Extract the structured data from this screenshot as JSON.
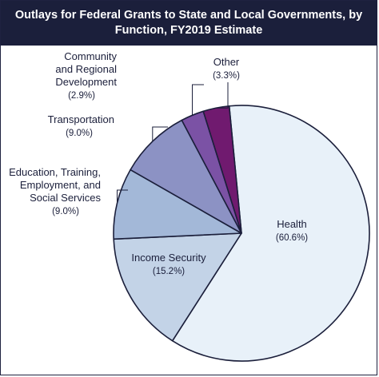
{
  "chart_data": {
    "type": "pie",
    "title_lines": [
      "Outlays for Federal Grants to State and Local Governments, by",
      "Function, FY2019 Estimate"
    ],
    "slices": [
      {
        "name_lines": [
          "Health"
        ],
        "value_label": "(60.6%)",
        "value": 60.6,
        "color": "#e8f1f9"
      },
      {
        "name_lines": [
          "Income Security"
        ],
        "value_label": "(15.2%)",
        "value": 15.2,
        "color": "#c3d3e7"
      },
      {
        "name_lines": [
          "Education, Training,",
          "Employment, and",
          "Social Services"
        ],
        "value_label": "(9.0%)",
        "value": 9.0,
        "color": "#a3b8d8"
      },
      {
        "name_lines": [
          "Transportation"
        ],
        "value_label": "(9.0%)",
        "value": 9.0,
        "color": "#8c92c4"
      },
      {
        "name_lines": [
          "Community",
          "and Regional",
          "Development"
        ],
        "value_label": "(2.9%)",
        "value": 2.9,
        "color": "#7b52a5"
      },
      {
        "name_lines": [
          "Other"
        ],
        "value_label": "(3.3%)",
        "value": 3.3,
        "color": "#701a6f"
      }
    ]
  }
}
